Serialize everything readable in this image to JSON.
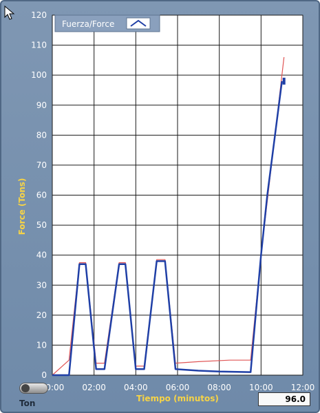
{
  "chart_data": {
    "type": "line",
    "title": "",
    "xlabel": "Tiempo (minutos)",
    "ylabel": "Force (Tons)",
    "xlim": [
      0,
      12
    ],
    "ylim": [
      0,
      120
    ],
    "x_ticks": [
      {
        "value": 0,
        "label": "00:00"
      },
      {
        "value": 2,
        "label": "02:00"
      },
      {
        "value": 4,
        "label": "04:00"
      },
      {
        "value": 6,
        "label": "06:00"
      },
      {
        "value": 8,
        "label": "08:00"
      },
      {
        "value": 10,
        "label": "10:00"
      },
      {
        "value": 12,
        "label": "12:00"
      }
    ],
    "y_ticks": [
      0,
      10,
      20,
      30,
      40,
      50,
      60,
      70,
      80,
      90,
      100,
      110,
      120
    ],
    "grid": true,
    "legend": {
      "label": "Fuerza/Force",
      "placement": "top-left"
    },
    "series": [
      {
        "name": "Fuerza/Force",
        "color": "#1f3fa6",
        "points": [
          [
            0.0,
            0
          ],
          [
            0.8,
            0
          ],
          [
            1.3,
            37
          ],
          [
            1.6,
            37
          ],
          [
            2.1,
            2
          ],
          [
            2.5,
            2
          ],
          [
            3.2,
            37
          ],
          [
            3.5,
            37
          ],
          [
            4.0,
            2
          ],
          [
            4.4,
            2
          ],
          [
            5.0,
            38
          ],
          [
            5.4,
            38
          ],
          [
            5.9,
            2
          ],
          [
            7.0,
            1.5
          ],
          [
            8.0,
            1.2
          ],
          [
            9.5,
            1
          ],
          [
            10.0,
            40
          ],
          [
            10.3,
            60
          ],
          [
            11.0,
            98
          ]
        ]
      },
      {
        "color": "#e05555",
        "points": [
          [
            0.0,
            0
          ],
          [
            0.8,
            5
          ],
          [
            1.3,
            37.5
          ],
          [
            1.6,
            37.5
          ],
          [
            2.1,
            4
          ],
          [
            2.5,
            4
          ],
          [
            3.2,
            37.5
          ],
          [
            3.5,
            37.5
          ],
          [
            4.0,
            3
          ],
          [
            4.4,
            3
          ],
          [
            5.0,
            38.5
          ],
          [
            5.4,
            38.5
          ],
          [
            5.9,
            4
          ],
          [
            7.0,
            4.5
          ],
          [
            8.5,
            5
          ],
          [
            9.5,
            5
          ],
          [
            10.0,
            40
          ],
          [
            11.1,
            106
          ]
        ]
      }
    ],
    "markers": [
      {
        "x": 11.1,
        "y": 98
      }
    ]
  },
  "readout": {
    "value": "96.0"
  },
  "toggle": {
    "label": "Ton"
  },
  "colors": {
    "panel_bg": "#7389a8",
    "plot_bg": "#ffffff",
    "axis_title": "#f6d347"
  },
  "icons": {
    "cursor": "arrow-cursor-icon",
    "legend_symbol": "line-symbol-icon"
  }
}
